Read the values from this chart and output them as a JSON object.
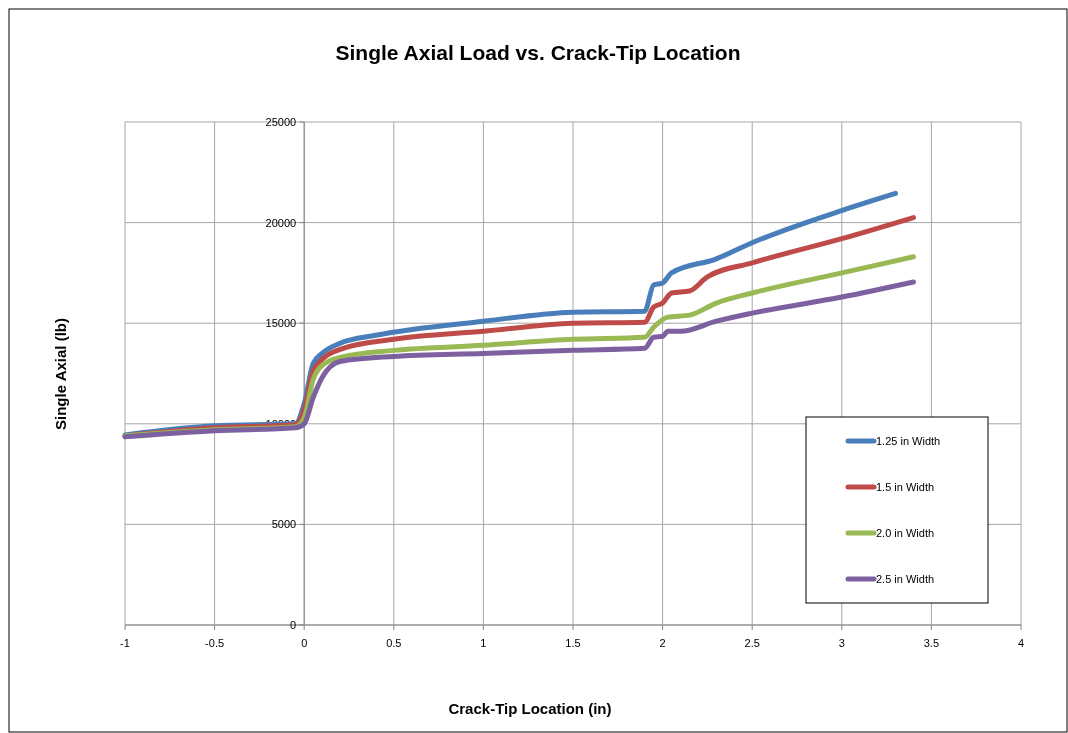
{
  "chart_data": {
    "type": "line",
    "title": "Single Axial Load vs. Crack-Tip Location",
    "xlabel": "Crack-Tip Location (in)",
    "ylabel": "Single Axial (lb)",
    "xlim": [
      -1,
      4
    ],
    "xticks": [
      -1,
      -0.5,
      0,
      0.5,
      1,
      1.5,
      2,
      2.5,
      3,
      3.5,
      4
    ],
    "ylim": [
      0,
      25000
    ],
    "yticks": [
      0,
      5000,
      10000,
      15000,
      20000,
      25000
    ],
    "grid": true,
    "legend": "bottom right",
    "marker": "none",
    "line_style": "solid",
    "series": [
      {
        "name": "1.25 in Width",
        "color": "#4a7ebb",
        "x": [
          -1,
          -0.5,
          -0.05,
          0,
          0.05,
          0.1,
          0.2,
          0.4,
          1,
          1.5,
          1.9,
          1.95,
          2,
          2.05,
          2.3,
          2.5,
          3,
          3.3
        ],
        "values": [
          9450,
          9900,
          10000,
          11000,
          13000,
          13500,
          14000,
          14400,
          15100,
          15550,
          15600,
          16900,
          17000,
          17500,
          18200,
          19000,
          20600,
          21450
        ]
      },
      {
        "name": "1.5 in Width",
        "color": "#be4b48",
        "x": [
          -1,
          -0.5,
          -0.05,
          0,
          0.05,
          0.1,
          0.2,
          0.5,
          1,
          1.5,
          1.9,
          1.95,
          2,
          2.05,
          2.15,
          2.25,
          2.5,
          3,
          3.4
        ],
        "values": [
          9400,
          9800,
          9950,
          10700,
          12600,
          13200,
          13700,
          14200,
          14600,
          15000,
          15050,
          15800,
          16000,
          16500,
          16600,
          17300,
          18000,
          19200,
          20250
        ]
      },
      {
        "name": "2.0 in Width",
        "color": "#98b954",
        "x": [
          -1,
          -0.5,
          -0.05,
          0,
          0.05,
          0.1,
          0.2,
          0.5,
          1,
          1.5,
          1.9,
          1.95,
          2.03,
          2.15,
          2.3,
          2.5,
          3,
          3.4
        ],
        "values": [
          9400,
          9700,
          9850,
          10300,
          12200,
          12900,
          13300,
          13650,
          13900,
          14200,
          14300,
          14800,
          15300,
          15400,
          16000,
          16500,
          17500,
          18300
        ]
      },
      {
        "name": "2.5 in Width",
        "color": "#7d60a0",
        "x": [
          -1,
          -0.5,
          -0.05,
          0,
          0.05,
          0.1,
          0.2,
          0.5,
          1,
          1.5,
          1.9,
          1.95,
          2,
          2.03,
          2.1,
          2.3,
          2.5,
          3,
          3.4
        ],
        "values": [
          9350,
          9650,
          9800,
          10000,
          11300,
          12300,
          13100,
          13350,
          13500,
          13650,
          13750,
          14300,
          14350,
          14600,
          14600,
          15100,
          15500,
          16300,
          17050
        ]
      }
    ]
  }
}
